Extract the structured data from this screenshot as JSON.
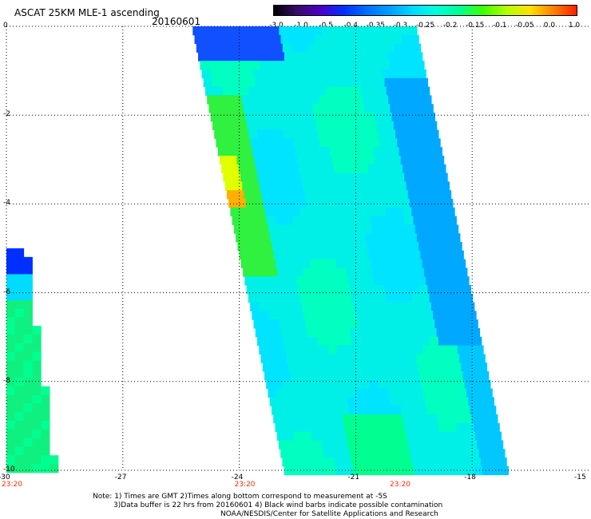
{
  "header": {
    "title": "ASCAT 25KM MLE-1 ascending",
    "date": "20160601"
  },
  "colorbar": {
    "labels": [
      "-3.0",
      "-1.0",
      "-0.5",
      "-0.4",
      "-0.35",
      "-0.3",
      "-0.25",
      "-0.2",
      "-0.15",
      "-0.1",
      "-0.05",
      "0.0",
      "1.0"
    ],
    "colors": [
      "#000000",
      "#3a0a6a",
      "#4b00c8",
      "#0030ff",
      "#0070ff",
      "#00a0ff",
      "#00dcff",
      "#00ffd8",
      "#00ff90",
      "#40ff00",
      "#b4ff00",
      "#ffe000",
      "#ff8000",
      "#ff2000"
    ]
  },
  "axes": {
    "x_ticks": [
      "-30",
      "-27",
      "-24",
      "-21",
      "-18",
      "-15"
    ],
    "y_ticks": [
      "0",
      "-2",
      "-4",
      "-6",
      "-8",
      "-10"
    ],
    "times": [
      "23:20",
      "23:20",
      "23:20"
    ]
  },
  "swaths": [
    {
      "name": "main",
      "top": {
        "lon": -25.2,
        "lat": 0
      },
      "bottom": {
        "lon": -22.8,
        "lat": -10
      },
      "width_deg": 5.6
    },
    {
      "name": "left",
      "top": {
        "lon": -30,
        "lat": -5.0
      },
      "bottom": {
        "lon": -30,
        "lat": -10
      },
      "width_deg": 1.2
    }
  ],
  "notes": {
    "line1": "Note: 1) Times are GMT 2)Times along bottom correspond to measurement at -5S",
    "line2": "3)Data buffer is 22 hrs from 20160601 4) Black wind barbs indicate possible contamination",
    "line3": "NOAA/NESDIS/Center for Satellite Applications and Research"
  }
}
